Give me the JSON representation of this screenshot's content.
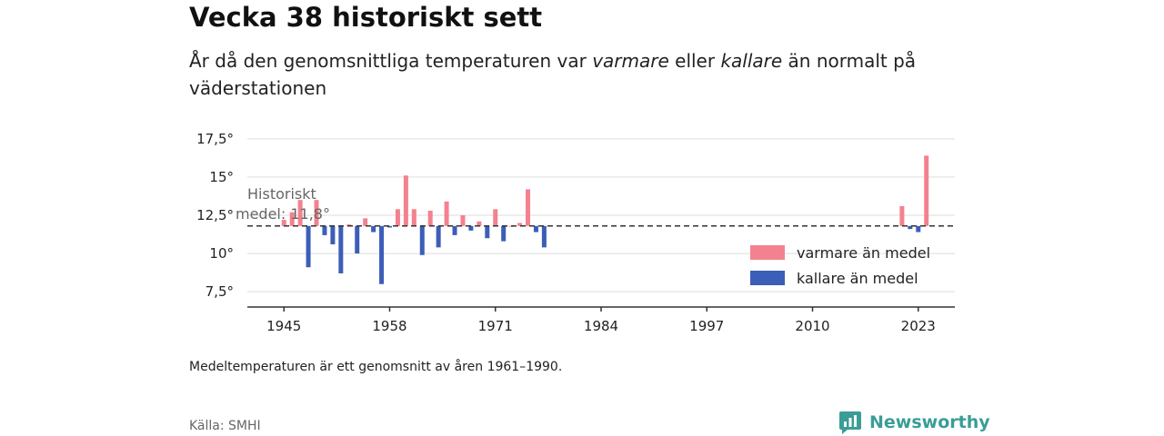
{
  "header": {
    "title": "Vecka 38 historiskt sett",
    "subtitle_parts": [
      "År då den genomsnittliga temperaturen var ",
      "varmare",
      " eller ",
      "kallare",
      " än normalt på väderstationen"
    ]
  },
  "footer": {
    "note": "Medeltemperaturen är ett genomsnitt av åren 1961–1990.",
    "source": "Källa: SMHI",
    "brand": "Newsworthy"
  },
  "chart_data": {
    "type": "bar",
    "baseline": 11.8,
    "annotation": [
      "Historiskt",
      "medel: 11,8°"
    ],
    "ylim": [
      6.5,
      18.5
    ],
    "xlim": [
      1940.5,
      2027.5
    ],
    "y_ticks": [
      7.5,
      10,
      12.5,
      15,
      17.5
    ],
    "y_tick_labels": [
      "7,5°",
      "10°",
      "12,5°",
      "15°",
      "17,5°"
    ],
    "x_ticks": [
      1945,
      1958,
      1971,
      1984,
      1997,
      2010,
      2023
    ],
    "x_tick_labels": [
      "1945",
      "1958",
      "1971",
      "1984",
      "1997",
      "2010",
      "2023"
    ],
    "colors": {
      "warmer": "#f4818f",
      "colder": "#3b5eb8",
      "baseline": "#333333",
      "grid": "#dddddd"
    },
    "legend": [
      {
        "key": "warmer",
        "label": "varmare än medel"
      },
      {
        "key": "colder",
        "label": "kallare än medel"
      }
    ],
    "legend_position": "bottom-right",
    "years": [
      1945,
      1946,
      1947,
      1948,
      1949,
      1950,
      1951,
      1952,
      1953,
      1954,
      1955,
      1956,
      1957,
      1958,
      1959,
      1960,
      1961,
      1962,
      1963,
      1964,
      1965,
      1966,
      1967,
      1968,
      1969,
      1970,
      1971,
      1972,
      1973,
      1974,
      1975,
      1976,
      1977,
      2021,
      2022,
      2023,
      2024
    ],
    "values": [
      12.2,
      12.7,
      13.5,
      9.1,
      13.5,
      11.2,
      10.6,
      8.7,
      11.9,
      10.0,
      12.3,
      11.4,
      8.0,
      11.7,
      12.9,
      15.1,
      12.9,
      9.9,
      12.8,
      10.4,
      13.4,
      11.2,
      12.5,
      11.5,
      12.1,
      11.0,
      12.9,
      10.8,
      11.8,
      12.0,
      14.2,
      11.4,
      10.4,
      13.1,
      11.6,
      11.4,
      16.4
    ]
  }
}
